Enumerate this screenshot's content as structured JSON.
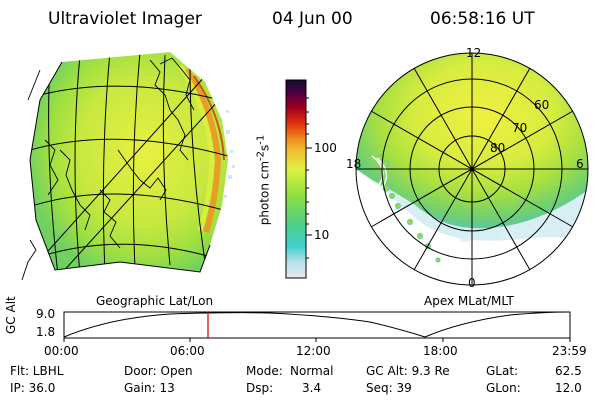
{
  "header": {
    "title": "Ultraviolet Imager",
    "date": "04 Jun 00",
    "time": "06:58:16 UT"
  },
  "colorbar": {
    "label": "photon cm^-2 s^-1",
    "ticks": [
      "100",
      "10"
    ],
    "scale": "log"
  },
  "left_map": {
    "caption": "Geographic Lat/Lon"
  },
  "right_map": {
    "caption": "Apex MLat/MLT",
    "mlt_labels": [
      "12",
      "18",
      "6",
      "0"
    ],
    "mlat_labels": [
      "60",
      "70",
      "80"
    ]
  },
  "timeline": {
    "ylabel": "GC Alt",
    "ytick_top": "9.0",
    "ytick_bottom": "1.8",
    "xticks": [
      "00:00",
      "06:00",
      "12:00",
      "18:00",
      "23:59"
    ],
    "current_marker_time": "06:58"
  },
  "meta": {
    "flt": "Flt: LBHL",
    "ip": "IP: 36.0",
    "door": "Door: Open",
    "gain": "Gain: 13",
    "mode_label": "Mode:",
    "mode_value": "Normal",
    "dsp_label": "Dsp:",
    "dsp_value": "3.4",
    "gcalt": "GC Alt: 9.3 Re",
    "seq": "Seq: 39",
    "glat_label": "GLat:",
    "glat_value": "62.5",
    "glon_label": "GLon:",
    "glon_value": "12.0"
  },
  "colors": {
    "low": "#e0e0f0",
    "cyan": "#40d0c0",
    "green": "#90e040",
    "yellow": "#f0f040",
    "orange": "#f09020",
    "red": "#d01010",
    "dark": "#101030",
    "marker": "#d00000"
  }
}
